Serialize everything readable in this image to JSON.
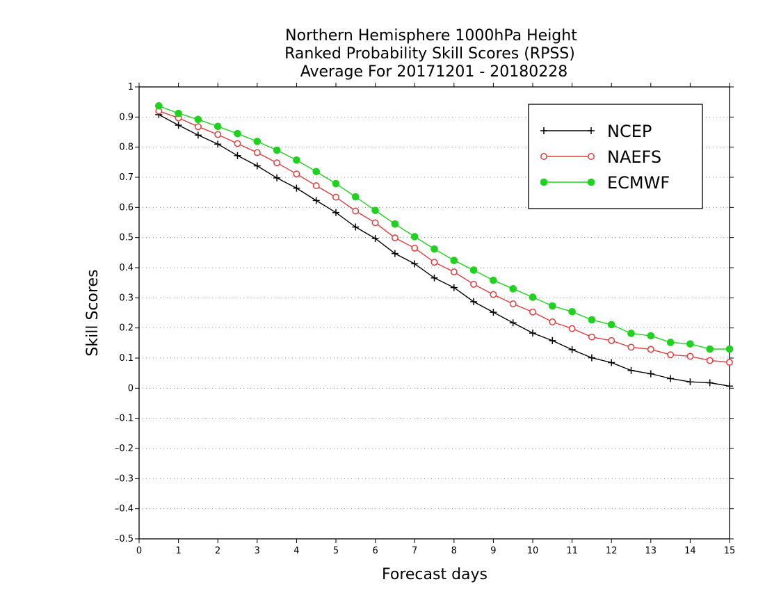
{
  "chart_data": {
    "type": "line",
    "title": [
      "Northern Hemisphere 1000hPa Height",
      "Ranked Probability Skill Scores (RPSS)",
      "Average For 20171201 - 20180228"
    ],
    "xlabel": "Forecast days",
    "ylabel": "Skill Scores",
    "xlim": [
      0,
      15
    ],
    "ylim": [
      -0.5,
      1
    ],
    "xticks": [
      "0",
      "1",
      "2",
      "3",
      "4",
      "5",
      "6",
      "7",
      "8",
      "9",
      "10",
      "11",
      "12",
      "13",
      "14",
      "15"
    ],
    "yticks": [
      "–0.5",
      "–0.4",
      "–0.3",
      "–0.2",
      "–0.1",
      "0",
      "0.1",
      "0.2",
      "0.3",
      "0.4",
      "0.5",
      "0.6",
      "0.7",
      "0.8",
      "0.9",
      "1"
    ],
    "grid": "horizontal dotted",
    "legend_position": "top-right",
    "x": [
      0.5,
      1,
      1.5,
      2,
      2.5,
      3,
      3.5,
      4,
      4.5,
      5,
      5.5,
      6,
      6.5,
      7,
      7.5,
      8,
      8.5,
      9,
      9.5,
      10,
      10.5,
      11,
      11.5,
      12,
      12.5,
      13,
      13.5,
      14,
      14.5,
      15
    ],
    "series": [
      {
        "name": "NCEP",
        "color": "#000000",
        "marker": "plus",
        "values": [
          0.908,
          0.873,
          0.84,
          0.81,
          0.772,
          0.738,
          0.698,
          0.664,
          0.623,
          0.583,
          0.535,
          0.497,
          0.447,
          0.413,
          0.366,
          0.334,
          0.287,
          0.252,
          0.217,
          0.183,
          0.158,
          0.128,
          0.101,
          0.085,
          0.059,
          0.048,
          0.032,
          0.021,
          0.018,
          0.007
        ]
      },
      {
        "name": "NAEFS",
        "color": "#e03c3c",
        "marker": "open-circle",
        "values": [
          0.92,
          0.897,
          0.868,
          0.842,
          0.812,
          0.782,
          0.748,
          0.711,
          0.672,
          0.634,
          0.588,
          0.549,
          0.499,
          0.465,
          0.418,
          0.386,
          0.345,
          0.311,
          0.28,
          0.253,
          0.22,
          0.198,
          0.17,
          0.158,
          0.136,
          0.129,
          0.111,
          0.106,
          0.092,
          0.086
        ]
      },
      {
        "name": "ECMWF",
        "color": "#1ed21e",
        "marker": "filled-circle",
        "values": [
          0.937,
          0.912,
          0.892,
          0.869,
          0.845,
          0.819,
          0.79,
          0.757,
          0.719,
          0.679,
          0.635,
          0.59,
          0.545,
          0.503,
          0.462,
          0.424,
          0.392,
          0.358,
          0.33,
          0.302,
          0.273,
          0.254,
          0.227,
          0.211,
          0.182,
          0.174,
          0.152,
          0.147,
          0.13,
          0.13
        ]
      }
    ]
  }
}
